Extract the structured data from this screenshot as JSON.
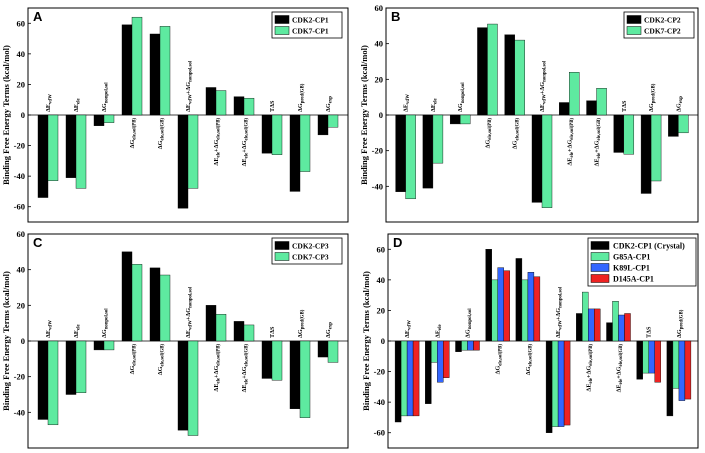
{
  "chart_data": [
    {
      "type": "bar",
      "panel": "A",
      "ylabel": "Binding Free Energy Terms (kcal/mol)",
      "ylim": [
        -70,
        70
      ],
      "yticks": [
        -60,
        -40,
        -20,
        0,
        20,
        40,
        60
      ],
      "categories": [
        "ΔE_vdW",
        "ΔE_ele",
        "ΔG_nonpol,sol",
        "ΔG_ele,sol(PB)",
        "ΔG_ele,sol(GB)",
        "ΔE_vdW+ΔG_nonpol,sol",
        "ΔE_ele+ΔG_ele,sol(PB)",
        "ΔE_ele+ΔG_ele,sol(GB)",
        "TΔS",
        "ΔG_pred(GB)",
        "ΔG_exp"
      ],
      "series": [
        {
          "name": "CDK2-CP1",
          "color": "#000000",
          "values": [
            -54,
            -41,
            -7,
            59,
            53,
            -61,
            18,
            12,
            -25,
            -50,
            -13
          ]
        },
        {
          "name": "CDK7-CP1",
          "color": "#5eeaa0",
          "values": [
            -43,
            -48,
            -5,
            64,
            58,
            -48,
            16,
            11,
            -26,
            -37,
            -8
          ]
        }
      ]
    },
    {
      "type": "bar",
      "panel": "B",
      "ylabel": "Binding Free Energy Terms (kcal/mol)",
      "ylim": [
        -60,
        60
      ],
      "yticks": [
        -40,
        -20,
        0,
        20,
        40,
        60
      ],
      "categories": [
        "ΔE_vdW",
        "ΔE_ele",
        "ΔG_nonpol,sol",
        "ΔG_ele,sol(PB)",
        "ΔG_ele,sol(GB)",
        "ΔE_vdW+ΔG_nonpol,sol",
        "ΔE_ele+ΔG_ele,sol(PB)",
        "ΔE_ele+ΔG_ele,sol(GB)",
        "TΔS",
        "ΔG_pred(GB)",
        "ΔG_exp"
      ],
      "series": [
        {
          "name": "CDK2-CP2",
          "color": "#000000",
          "values": [
            -43,
            -41,
            -5,
            49,
            45,
            -49,
            7,
            8,
            -21,
            -44,
            -12
          ]
        },
        {
          "name": "CDK7-CP2",
          "color": "#5eeaa0",
          "values": [
            -47,
            -27,
            -5,
            51,
            42,
            -52,
            24,
            15,
            -22,
            -37,
            -10
          ]
        }
      ]
    },
    {
      "type": "bar",
      "panel": "C",
      "ylabel": "Binding Free Energy Terms (kcal/mol)",
      "ylim": [
        -60,
        60
      ],
      "yticks": [
        -40,
        -20,
        0,
        20,
        40,
        60
      ],
      "categories": [
        "ΔE_vdW",
        "ΔE_ele",
        "ΔG_nonpol,sol",
        "ΔG_ele,sol(PB)",
        "ΔG_ele,sol(GB)",
        "ΔE_vdW+ΔG_nonpol,sol",
        "ΔE_ele+ΔG_ele,sol(PB)",
        "ΔE_ele+ΔG_ele,sol(GB)",
        "TΔS",
        "ΔG_pred(GB)",
        "ΔG_exp"
      ],
      "series": [
        {
          "name": "CDK2-CP3",
          "color": "#000000",
          "values": [
            -44,
            -30,
            -5,
            50,
            41,
            -50,
            20,
            11,
            -21,
            -38,
            -9
          ]
        },
        {
          "name": "CDK7-CP3",
          "color": "#5eeaa0",
          "values": [
            -47,
            -29,
            -5,
            43,
            37,
            -53,
            15,
            9,
            -22,
            -43,
            -12
          ]
        }
      ]
    },
    {
      "type": "bar",
      "panel": "D",
      "ylabel": "Binding Free Energy Terms (kcal/mol)",
      "ylim": [
        -70,
        70
      ],
      "yticks": [
        -60,
        -40,
        -20,
        0,
        20,
        40,
        60
      ],
      "categories": [
        "ΔE_vdW",
        "ΔE_ele",
        "ΔG_nonpol,sol",
        "ΔG_ele,sol(PB)",
        "ΔG_ele,sol(GB)",
        "ΔE_vdW+ΔG_nonpol,sol",
        "ΔE_ele+ΔG_ele,sol(PB)",
        "ΔE_ele+ΔG_ele,sol(GB)",
        "TΔS",
        "ΔG_pred(GB)"
      ],
      "series": [
        {
          "name": "CDK2-CP1 (Crystal)",
          "color": "#000000",
          "values": [
            -53,
            -41,
            -7,
            60,
            54,
            -60,
            18,
            12,
            -25,
            -49
          ]
        },
        {
          "name": "G85A-CP1",
          "color": "#5eeaa0",
          "values": [
            -49,
            -14,
            -6,
            40,
            40,
            -56,
            32,
            26,
            -21,
            -31
          ]
        },
        {
          "name": "K89L-CP1",
          "color": "#3366ff",
          "values": [
            -49,
            -27,
            -6,
            48,
            45,
            -56,
            21,
            17,
            -21,
            -39
          ]
        },
        {
          "name": "D145A-CP1",
          "color": "#ee2222",
          "values": [
            -49,
            -24,
            -6,
            46,
            42,
            -55,
            21,
            18,
            -27,
            -38
          ]
        }
      ]
    }
  ]
}
